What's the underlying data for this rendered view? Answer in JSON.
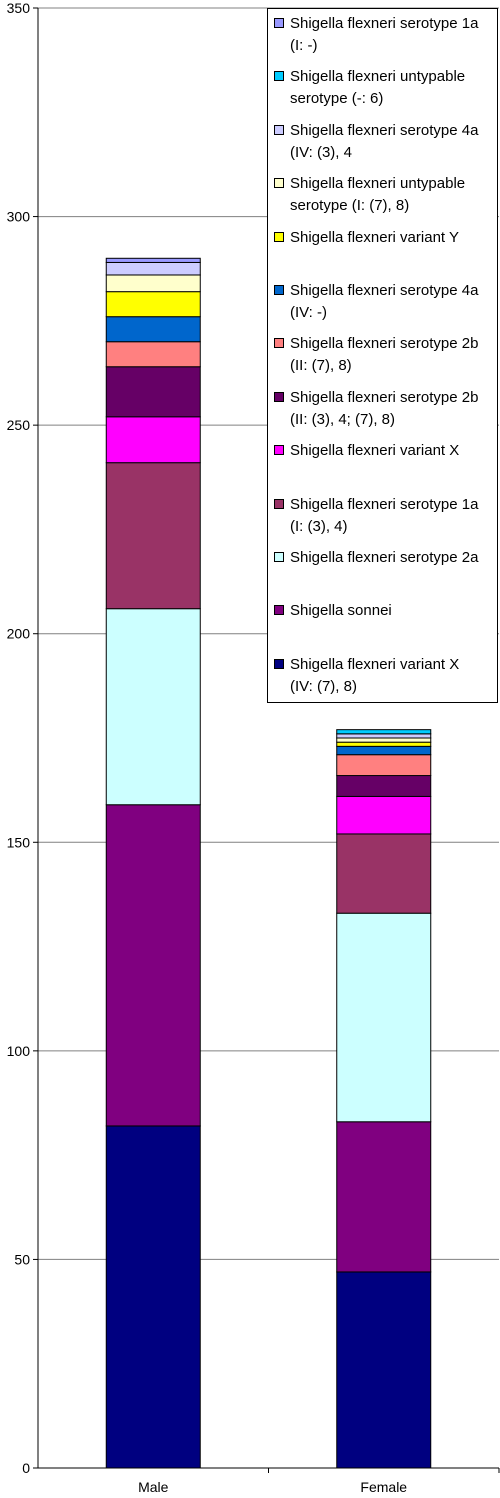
{
  "chart_data": {
    "type": "bar",
    "stacked": true,
    "categories": [
      "Male",
      "Female"
    ],
    "ylim": [
      0,
      350
    ],
    "yticks": [
      0,
      50,
      100,
      150,
      200,
      250,
      300,
      350
    ],
    "grid": true,
    "legend_position": "right",
    "series": [
      {
        "name": "Shigella flexneri variant X\n(IV: (7), 8)",
        "color": "#000080",
        "values": [
          82,
          47
        ]
      },
      {
        "name": "Shigella sonnei",
        "color": "#800080",
        "values": [
          77,
          36
        ]
      },
      {
        "name": "Shigella flexneri serotype 2a",
        "color": "#CCFFFF",
        "values": [
          47,
          50
        ]
      },
      {
        "name": "Shigella flexneri serotype 1a\n(I: (3), 4)",
        "color": "#993366",
        "values": [
          35,
          19
        ]
      },
      {
        "name": "Shigella flexneri variant X",
        "color": "#FF00FF",
        "values": [
          11,
          9
        ]
      },
      {
        "name": "Shigella flexneri serotype 2b\n(II: (3), 4; (7), 8)",
        "color": "#660066",
        "values": [
          12,
          5
        ]
      },
      {
        "name": "Shigella flexneri serotype 2b\n(II: (7), 8)",
        "color": "#FF8080",
        "values": [
          6,
          5
        ]
      },
      {
        "name": "Shigella flexneri serotype 4a\n(IV: -)",
        "color": "#0066CC",
        "values": [
          6,
          2
        ]
      },
      {
        "name": "Shigella flexneri variant Y",
        "color": "#FFFF00",
        "values": [
          6,
          1
        ]
      },
      {
        "name": "Shigella flexneri untypable\nserotype (I: (7), 8)",
        "color": "#FFFFCC",
        "values": [
          4,
          1
        ]
      },
      {
        "name": "Shigella flexneri serotype 4a\n(IV: (3), 4",
        "color": "#CCCCFF",
        "values": [
          3,
          1
        ]
      },
      {
        "name": "Shigella flexneri untypable\nserotype (-: 6)",
        "color": "#00CCFF",
        "values": [
          0,
          1
        ]
      },
      {
        "name": "Shigella flexneri serotype 1a\n(I: -)",
        "color": "#9999FF",
        "values": [
          1,
          0
        ]
      }
    ]
  }
}
